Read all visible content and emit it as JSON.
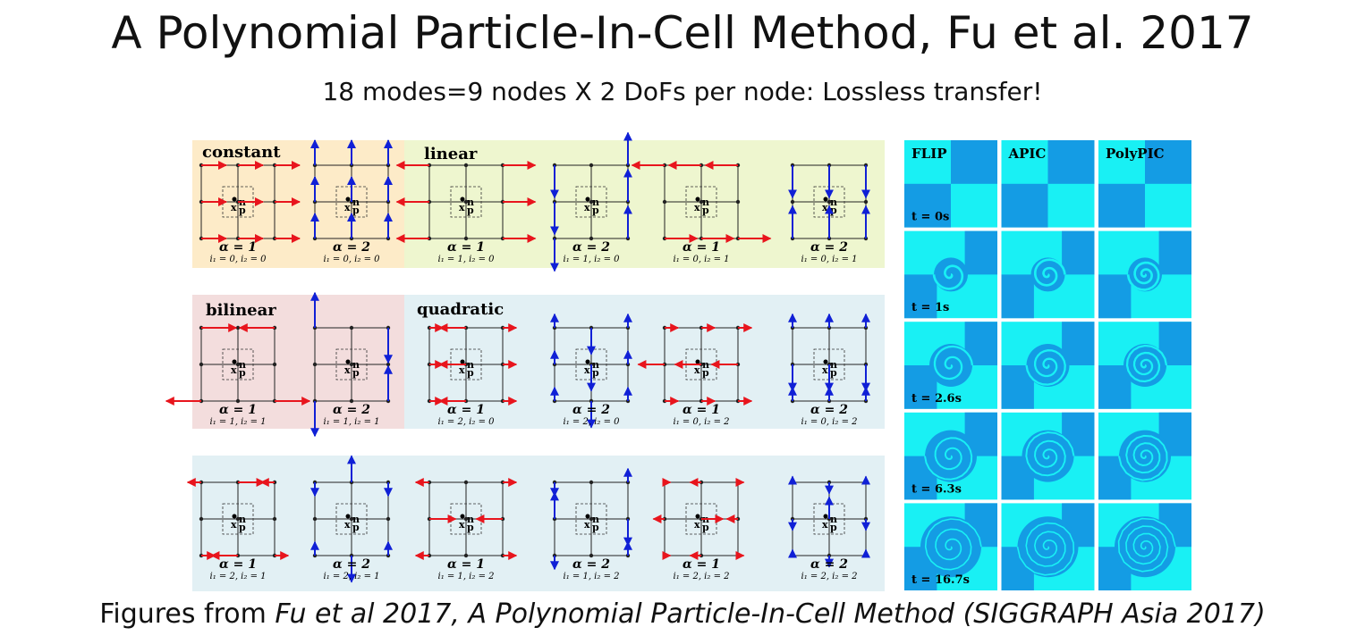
{
  "slide": {
    "title": "A Polynomial Particle-In-Cell Method, Fu et al. 2017",
    "subtitle": "18 modes=9 nodes X 2 DoFs per node: Lossless transfer!",
    "caption_prefix": "Figures from ",
    "caption_italic": "Fu et al 2017, A Polynomial Particle-In-Cell Method (SIGGRAPH Asia 2017)"
  },
  "colors": {
    "constant_bg": "#fdebc8",
    "linear_bg": "#eef6cf",
    "bilinear_bg": "#f3dddd",
    "quadratic_bg": "#e2f0f4",
    "red_arrow": "#e8151d",
    "blue_arrow": "#1020d6",
    "sim_light": "#19f0f4",
    "sim_dark": "#149ce4"
  },
  "group_labels": {
    "constant": "constant",
    "linear": "linear",
    "bilinear": "bilinear",
    "quadratic": "quadratic"
  },
  "particle_label": "x",
  "particle_sup": "n",
  "particle_sub": "p",
  "modes": [
    {
      "alpha": "α = 1",
      "idx": "i₁ = 0, i₂ = 0"
    },
    {
      "alpha": "α = 2",
      "idx": "i₁ = 0, i₂ = 0"
    },
    {
      "alpha": "α = 1",
      "idx": "i₁ = 1, i₂ = 0"
    },
    {
      "alpha": "α = 2",
      "idx": "i₁ = 1, i₂ = 0"
    },
    {
      "alpha": "α = 1",
      "idx": "i₁ = 0, i₂ = 1"
    },
    {
      "alpha": "α = 2",
      "idx": "i₁ = 0, i₂ = 1"
    },
    {
      "alpha": "α = 1",
      "idx": "i₁ = 1, i₂ = 1"
    },
    {
      "alpha": "α = 2",
      "idx": "i₁ = 1, i₂ = 1"
    },
    {
      "alpha": "α = 1",
      "idx": "i₁ = 2, i₂ = 0"
    },
    {
      "alpha": "α = 2",
      "idx": "i₁ = 2, i₂ = 0"
    },
    {
      "alpha": "α = 1",
      "idx": "i₁ = 0, i₂ = 2"
    },
    {
      "alpha": "α = 2",
      "idx": "i₁ = 0, i₂ = 2"
    },
    {
      "alpha": "α = 1",
      "idx": "i₁ = 2, i₂ = 1"
    },
    {
      "alpha": "α = 2",
      "idx": "i₁ = 2, i₂ = 1"
    },
    {
      "alpha": "α = 1",
      "idx": "i₁ = 1, i₂ = 2"
    },
    {
      "alpha": "α = 2",
      "idx": "i₁ = 1, i₂ = 2"
    },
    {
      "alpha": "α = 1",
      "idx": "i₁ = 2, i₂ = 2"
    },
    {
      "alpha": "α = 2",
      "idx": "i₁ = 2, i₂ = 2"
    }
  ],
  "simulation": {
    "methods": [
      "FLIP",
      "APIC",
      "PolyPIC"
    ],
    "times": [
      "t = 0s",
      "t = 1s",
      "t = 2.6s",
      "t = 6.3s",
      "t = 16.7s"
    ]
  }
}
